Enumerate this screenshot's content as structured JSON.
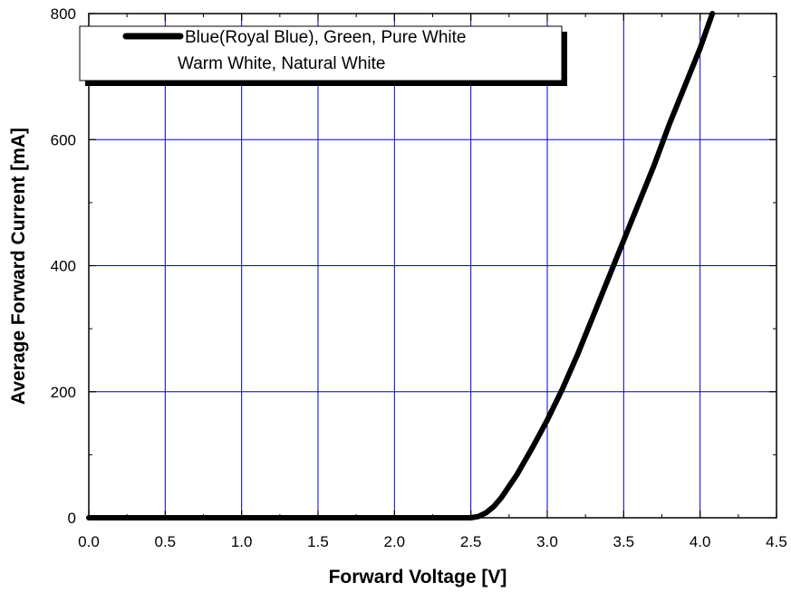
{
  "chart_data": {
    "type": "line",
    "title": "",
    "xlabel": "Forward Voltage [V]",
    "ylabel": "Average Forward Current [mA]",
    "xlim": [
      0.0,
      4.5
    ],
    "ylim": [
      0,
      800
    ],
    "x_ticks": [
      "0.0",
      "0.5",
      "1.0",
      "1.5",
      "2.0",
      "2.5",
      "3.0",
      "3.5",
      "4.0",
      "4.5"
    ],
    "y_ticks": [
      "0",
      "200",
      "400",
      "600",
      "800"
    ],
    "grid": true,
    "grid_color": "#0000cc",
    "line_color": "#000000",
    "legend_position": "top-left",
    "legend": [
      {
        "line1": "Blue(Royal Blue), Green, Pure White",
        "line2": "Warm White, Natural White"
      }
    ],
    "series": [
      {
        "name": "Blue(Royal Blue), Green, Pure White Warm White, Natural White",
        "x": [
          0.0,
          0.5,
          1.0,
          1.5,
          2.0,
          2.4,
          2.5,
          2.55,
          2.6,
          2.65,
          2.7,
          2.75,
          2.8,
          2.9,
          3.0,
          3.1,
          3.2,
          3.3,
          3.4,
          3.5,
          3.6,
          3.7,
          3.8,
          3.9,
          4.0,
          4.08
        ],
        "y": [
          0,
          0,
          0,
          0,
          0,
          0,
          0,
          2,
          8,
          18,
          32,
          50,
          68,
          110,
          155,
          205,
          260,
          320,
          380,
          440,
          500,
          560,
          625,
          685,
          745,
          800
        ]
      }
    ]
  }
}
